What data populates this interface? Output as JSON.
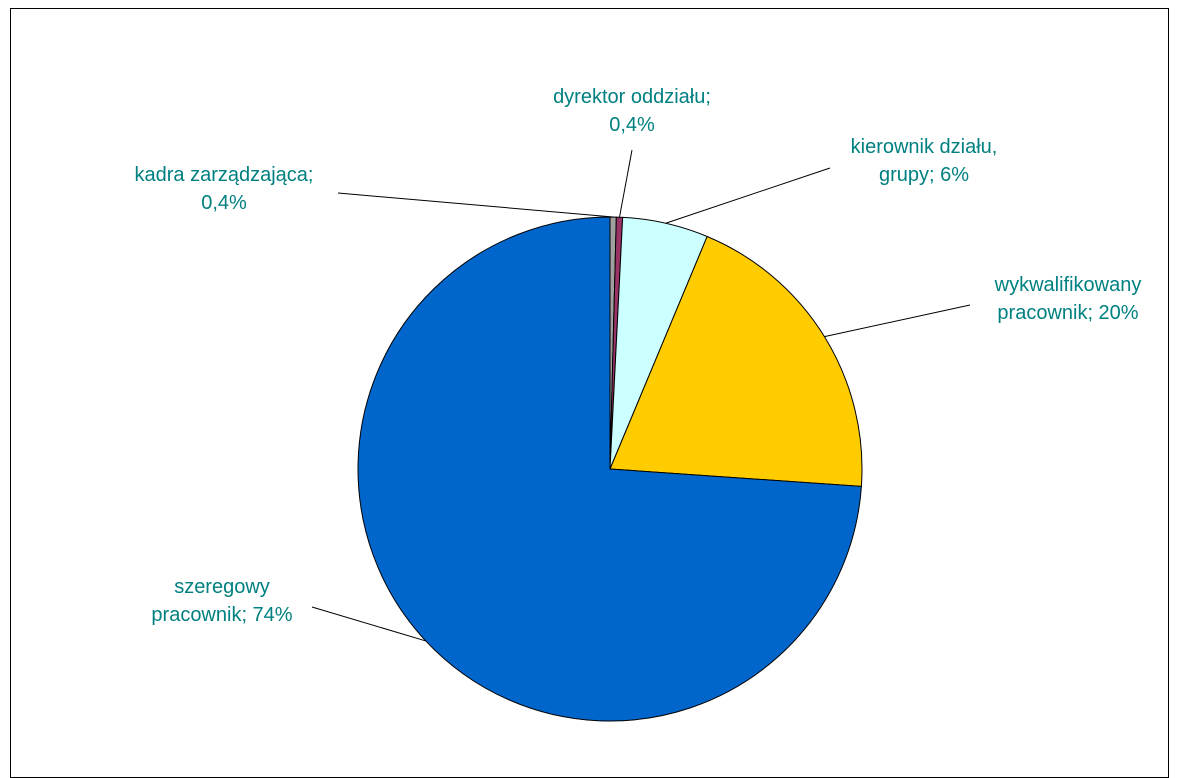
{
  "chart_data": {
    "type": "pie",
    "slices": [
      {
        "label_lines": [
          "kadra zarządzająca;",
          "0,4%"
        ],
        "value": 0.4,
        "color": "#a0a0a0"
      },
      {
        "label_lines": [
          "dyrektor oddziału;",
          "0,4%"
        ],
        "value": 0.4,
        "color": "#993366"
      },
      {
        "label_lines": [
          "kierownik działu,",
          "grupy; 6%"
        ],
        "value": 5.5,
        "color": "#ccffff"
      },
      {
        "label_lines": [
          "wykwalifikowany",
          "pracownik; 20%"
        ],
        "value": 19.8,
        "color": "#ffcc00"
      },
      {
        "label_lines": [
          "szeregowy",
          "pracownik; 74%"
        ],
        "value": 73.9,
        "color": "#0066cc"
      }
    ]
  }
}
